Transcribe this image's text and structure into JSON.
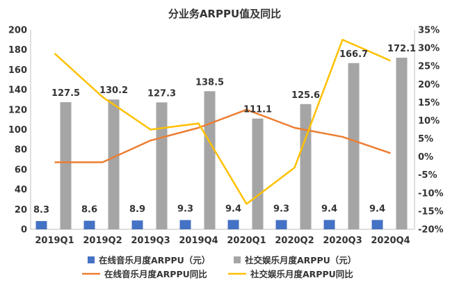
{
  "chart_data": {
    "type": "bar",
    "title": "分业务ARPPU值及同比",
    "categories": [
      "2019Q1",
      "2019Q2",
      "2019Q3",
      "2019Q4",
      "2020Q1",
      "2020Q2",
      "2020Q3",
      "2020Q4"
    ],
    "series": [
      {
        "name": "在线音乐月度ARPPU（元）",
        "kind": "bar",
        "axis": "left",
        "color": "#4472C4",
        "values": [
          8.3,
          8.6,
          8.9,
          9.3,
          9.4,
          9.3,
          9.4,
          9.4
        ],
        "labels": [
          "8.3",
          "8.6",
          "8.9",
          "9.3",
          "9.4",
          "9.3",
          "9.4",
          "9.4"
        ]
      },
      {
        "name": "社交娱乐月度ARPPU（元）",
        "kind": "bar",
        "axis": "left",
        "color": "#A5A5A5",
        "values": [
          127.5,
          130.2,
          127.3,
          138.5,
          111.1,
          125.6,
          166.7,
          172.1
        ],
        "labels": [
          "127.5",
          "130.2",
          "127.3",
          "138.5",
          "111.1",
          "125.6",
          "166.7",
          "172.1"
        ]
      },
      {
        "name": "在线音乐月度ARPPU同比",
        "kind": "line",
        "axis": "right",
        "color": "#ED7D31",
        "values": [
          -1.5,
          -1.5,
          4.5,
          8,
          13,
          8,
          5.5,
          1
        ]
      },
      {
        "name": "社交娱乐月度ARPPU同比",
        "kind": "line",
        "axis": "right",
        "color": "#FFC000",
        "values": [
          28.5,
          16.5,
          7.5,
          9.2,
          -13,
          -3,
          32.3,
          26.5
        ]
      }
    ],
    "y_left": {
      "min": 0,
      "max": 200,
      "step": 20,
      "tick_labels": [
        "0",
        "20",
        "40",
        "60",
        "80",
        "100",
        "120",
        "140",
        "160",
        "180",
        "200"
      ]
    },
    "y_right": {
      "min": -20,
      "max": 35,
      "step": 5,
      "tick_labels": [
        "-20%",
        "-15%",
        "-10%",
        "-5%",
        "0%",
        "5%",
        "10%",
        "15%",
        "20%",
        "25%",
        "30%",
        "35%"
      ]
    },
    "grid": false,
    "legend_position": "bottom"
  }
}
